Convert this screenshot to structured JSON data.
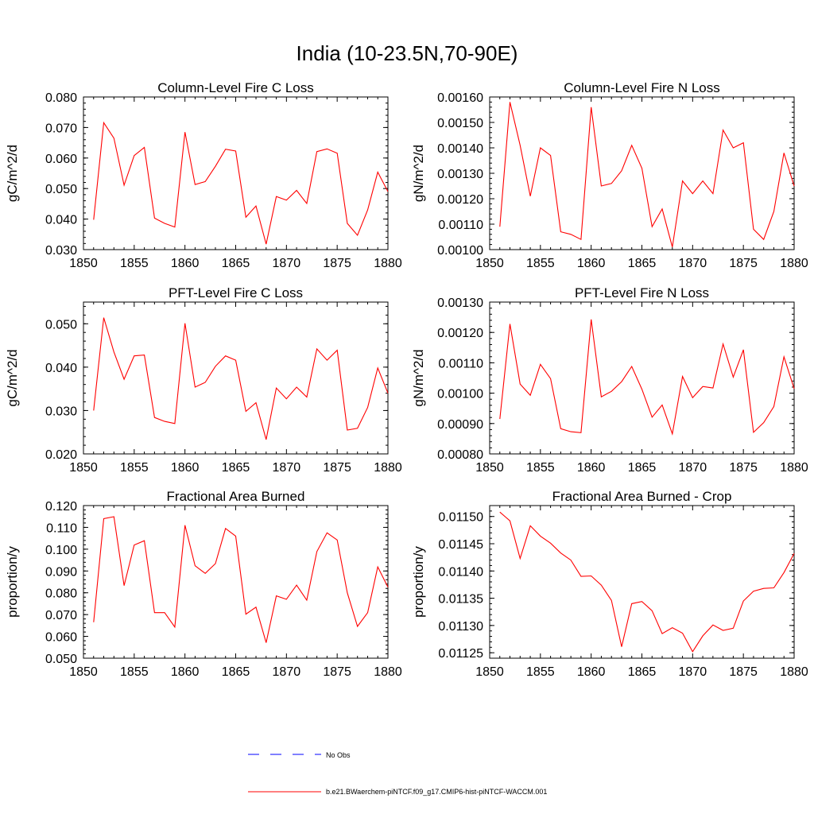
{
  "title": "India (10-23.5N,70-90E)",
  "colors": {
    "model": "#ff0000",
    "obs": "#0000ff",
    "axes": "#000000"
  },
  "legend": {
    "obs_label": "No Obs",
    "model_label": "b.e21.BWaerchem-piNTCF.f09_g17.CMIP6-hist-piNTCF-WACCM.001"
  },
  "chart_data": [
    {
      "type": "line",
      "title": "Column-Level Fire C Loss",
      "xlabel": "",
      "ylabel": "gC/m^2/d",
      "xlim": [
        1850,
        1880
      ],
      "ylim": [
        0.03,
        0.08
      ],
      "xticks": [
        "1850",
        "1855",
        "1860",
        "1865",
        "1870",
        "1875",
        "1880"
      ],
      "yticks": [
        "0.030",
        "0.040",
        "0.050",
        "0.060",
        "0.070",
        "0.080"
      ],
      "x": [
        1851,
        1852,
        1853,
        1854,
        1855,
        1856,
        1857,
        1858,
        1859,
        1860,
        1861,
        1862,
        1863,
        1864,
        1865,
        1866,
        1867,
        1868,
        1869,
        1870,
        1871,
        1872,
        1873,
        1874,
        1875,
        1876,
        1877,
        1878,
        1879,
        1880
      ],
      "values": [
        0.0398,
        0.0716,
        0.0665,
        0.0511,
        0.0608,
        0.0635,
        0.0403,
        0.0386,
        0.0374,
        0.0685,
        0.0513,
        0.0523,
        0.0573,
        0.0629,
        0.0623,
        0.0406,
        0.0443,
        0.0318,
        0.0474,
        0.0462,
        0.0494,
        0.0451,
        0.0621,
        0.063,
        0.0616,
        0.0386,
        0.0347,
        0.043,
        0.0554,
        0.049
      ]
    },
    {
      "type": "line",
      "title": "Column-Level Fire N Loss",
      "xlabel": "",
      "ylabel": "gN/m^2/d",
      "xlim": [
        1850,
        1880
      ],
      "ylim": [
        0.001,
        0.0016
      ],
      "xticks": [
        "1850",
        "1855",
        "1860",
        "1865",
        "1870",
        "1875",
        "1880"
      ],
      "yticks": [
        "0.00100",
        "0.00110",
        "0.00120",
        "0.00130",
        "0.00140",
        "0.00150",
        "0.00160"
      ],
      "x": [
        1851,
        1852,
        1853,
        1854,
        1855,
        1856,
        1857,
        1858,
        1859,
        1860,
        1861,
        1862,
        1863,
        1864,
        1865,
        1866,
        1867,
        1868,
        1869,
        1870,
        1871,
        1872,
        1873,
        1874,
        1875,
        1876,
        1877,
        1878,
        1879,
        1880
      ],
      "values": [
        0.00109,
        0.00158,
        0.00141,
        0.00121,
        0.0014,
        0.00137,
        0.00107,
        0.00106,
        0.00104,
        0.00156,
        0.00125,
        0.00126,
        0.00131,
        0.00141,
        0.00132,
        0.00109,
        0.00116,
        0.00101,
        0.00127,
        0.00122,
        0.00127,
        0.00122,
        0.00147,
        0.0014,
        0.00142,
        0.00108,
        0.00104,
        0.00115,
        0.00138,
        0.00125
      ]
    },
    {
      "type": "line",
      "title": "PFT-Level Fire C Loss",
      "xlabel": "",
      "ylabel": "gC/m^2/d",
      "xlim": [
        1850,
        1880
      ],
      "ylim": [
        0.02,
        0.055
      ],
      "xticks": [
        "1850",
        "1855",
        "1860",
        "1865",
        "1870",
        "1875",
        "1880"
      ],
      "yticks": [
        "0.020",
        "0.030",
        "0.040",
        "0.050"
      ],
      "x": [
        1851,
        1852,
        1853,
        1854,
        1855,
        1856,
        1857,
        1858,
        1859,
        1860,
        1861,
        1862,
        1863,
        1864,
        1865,
        1866,
        1867,
        1868,
        1869,
        1870,
        1871,
        1872,
        1873,
        1874,
        1875,
        1876,
        1877,
        1878,
        1879,
        1880
      ],
      "values": [
        0.03,
        0.0514,
        0.0435,
        0.0372,
        0.0426,
        0.0428,
        0.0284,
        0.0275,
        0.027,
        0.0501,
        0.0354,
        0.0365,
        0.0402,
        0.0426,
        0.0416,
        0.0298,
        0.0318,
        0.0233,
        0.0352,
        0.0327,
        0.0354,
        0.0331,
        0.0442,
        0.0416,
        0.0439,
        0.0255,
        0.0259,
        0.0307,
        0.0398,
        0.034
      ]
    },
    {
      "type": "line",
      "title": "PFT-Level Fire N Loss",
      "xlabel": "",
      "ylabel": "gN/m^2/d",
      "xlim": [
        1850,
        1880
      ],
      "ylim": [
        0.0008,
        0.0013
      ],
      "xticks": [
        "1850",
        "1855",
        "1860",
        "1865",
        "1870",
        "1875",
        "1880"
      ],
      "yticks": [
        "0.00080",
        "0.00090",
        "0.00100",
        "0.00110",
        "0.00120",
        "0.00130"
      ],
      "x": [
        1851,
        1852,
        1853,
        1854,
        1855,
        1856,
        1857,
        1858,
        1859,
        1860,
        1861,
        1862,
        1863,
        1864,
        1865,
        1866,
        1867,
        1868,
        1869,
        1870,
        1871,
        1872,
        1873,
        1874,
        1875,
        1876,
        1877,
        1878,
        1879,
        1880
      ],
      "values": [
        0.000915,
        0.001228,
        0.00103,
        0.000993,
        0.001095,
        0.001048,
        0.000883,
        0.000873,
        0.00087,
        0.001243,
        0.000988,
        0.001006,
        0.001038,
        0.001088,
        0.001013,
        0.000921,
        0.000961,
        0.000866,
        0.001055,
        0.000985,
        0.001022,
        0.001017,
        0.001162,
        0.001053,
        0.001143,
        0.000871,
        0.000903,
        0.000956,
        0.00112,
        0.001015
      ]
    },
    {
      "type": "line",
      "title": "Fractional Area Burned",
      "xlabel": "",
      "ylabel": "proportion/y",
      "xlim": [
        1850,
        1880
      ],
      "ylim": [
        0.05,
        0.12
      ],
      "xticks": [
        "1850",
        "1855",
        "1860",
        "1865",
        "1870",
        "1875",
        "1880"
      ],
      "yticks": [
        "0.050",
        "0.060",
        "0.070",
        "0.080",
        "0.090",
        "0.100",
        "0.110",
        "0.120"
      ],
      "x": [
        1851,
        1852,
        1853,
        1854,
        1855,
        1856,
        1857,
        1858,
        1859,
        1860,
        1861,
        1862,
        1863,
        1864,
        1865,
        1866,
        1867,
        1868,
        1869,
        1870,
        1871,
        1872,
        1873,
        1874,
        1875,
        1876,
        1877,
        1878,
        1879,
        1880
      ],
      "values": [
        0.0665,
        0.114,
        0.1149,
        0.0833,
        0.1019,
        0.1039,
        0.0709,
        0.0709,
        0.0643,
        0.111,
        0.0924,
        0.0889,
        0.0934,
        0.1095,
        0.106,
        0.0702,
        0.0734,
        0.0571,
        0.0786,
        0.077,
        0.0835,
        0.0766,
        0.0989,
        0.1075,
        0.1042,
        0.08,
        0.0646,
        0.0709,
        0.0919,
        0.0826
      ]
    },
    {
      "type": "line",
      "title": "Fractional Area Burned - Crop",
      "xlabel": "",
      "ylabel": "proportion/y",
      "xlim": [
        1850,
        1880
      ],
      "ylim": [
        0.01124,
        0.01152
      ],
      "xticks": [
        "1850",
        "1855",
        "1860",
        "1865",
        "1870",
        "1875",
        "1880"
      ],
      "yticks": [
        "0.01125",
        "0.01130",
        "0.01135",
        "0.01140",
        "0.01145",
        "0.01150"
      ],
      "x": [
        1851,
        1852,
        1853,
        1854,
        1855,
        1856,
        1857,
        1858,
        1859,
        1860,
        1861,
        1862,
        1863,
        1864,
        1865,
        1866,
        1867,
        1868,
        1869,
        1870,
        1871,
        1872,
        1873,
        1874,
        1875,
        1876,
        1877,
        1878,
        1879,
        1880
      ],
      "values": [
        0.011508,
        0.011492,
        0.011423,
        0.011483,
        0.011464,
        0.011451,
        0.011433,
        0.01142,
        0.01139,
        0.011391,
        0.011374,
        0.011346,
        0.011261,
        0.01134,
        0.011344,
        0.011327,
        0.011285,
        0.011296,
        0.011286,
        0.011252,
        0.011281,
        0.011301,
        0.011291,
        0.011295,
        0.011345,
        0.011363,
        0.011368,
        0.011369,
        0.011397,
        0.011432
      ]
    }
  ]
}
